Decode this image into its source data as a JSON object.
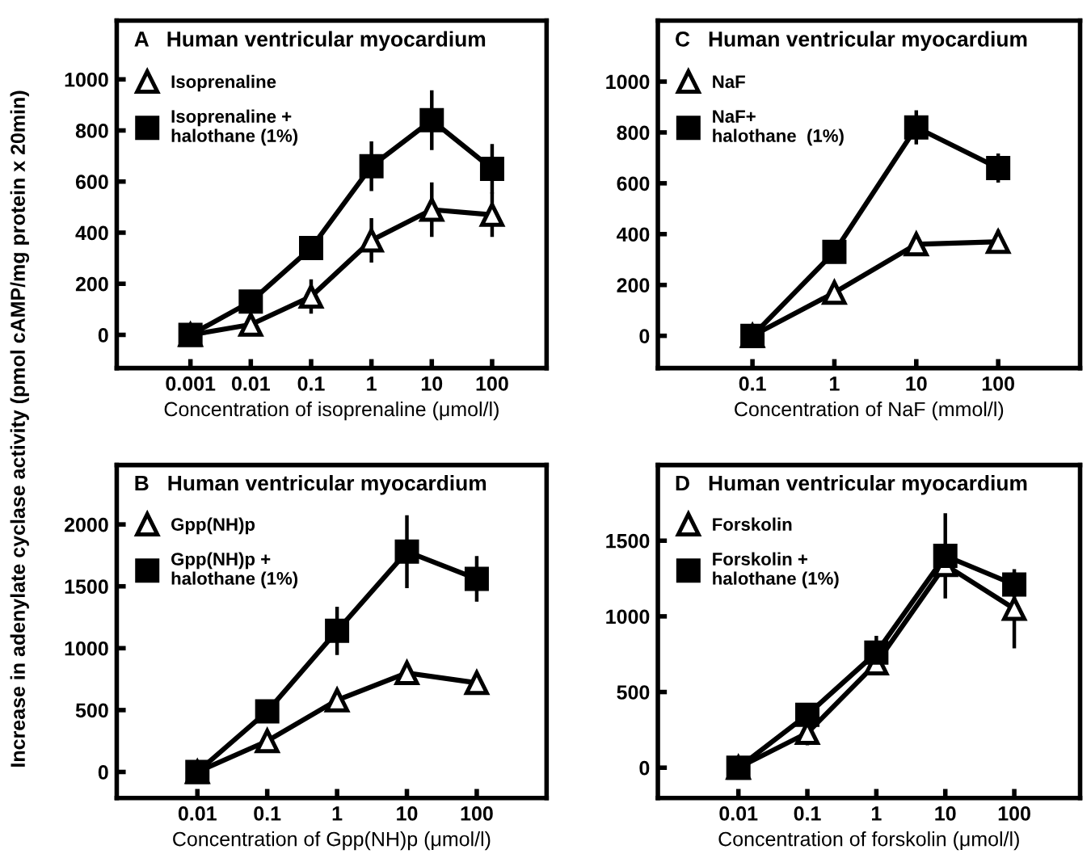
{
  "chart_data": [
    {
      "type": "line",
      "title": "A   Human ventricular myocardium",
      "ylabel": "Increase in adenylate cyclase activity (pmol cAMP/mg protein x 20min)",
      "xlabel": "Concentration of isoprenaline (μmol/l)",
      "log": "x",
      "x": [
        0.001,
        0.01,
        0.1,
        1,
        10,
        100
      ],
      "xlim": [
        6e-05,
        800
      ],
      "xticks": [
        {
          "value": 0.001,
          "label": "0.001"
        },
        {
          "value": 0.01,
          "label": "0.01"
        },
        {
          "value": 0.1,
          "label": "0.1"
        },
        {
          "value": 1,
          "label": "1"
        },
        {
          "value": 10,
          "label": "10"
        },
        {
          "value": 100,
          "label": "100"
        }
      ],
      "ylim": [
        -130,
        1230
      ],
      "yticks": [
        0,
        200,
        400,
        600,
        800,
        1000
      ],
      "grid": false,
      "legend": "top left",
      "series": [
        {
          "name": "Isoprenaline",
          "color": "#000000",
          "marker": "triangle",
          "values": [
            0,
            40,
            150,
            370,
            490,
            470
          ],
          "errors": [
            null,
            null,
            60,
            80,
            100,
            80
          ]
        },
        {
          "name": "Isoprenaline +\nhalothane (1%)",
          "color": "#000000",
          "marker": "square",
          "values": [
            0,
            130,
            340,
            660,
            840,
            650
          ],
          "errors": [
            null,
            null,
            null,
            90,
            110,
            90
          ]
        }
      ]
    },
    {
      "type": "line",
      "title": "C   Human ventricular myocardium",
      "xlabel": "Concentration of NaF (mmol/l)",
      "log": "x",
      "x": [
        0.1,
        1,
        10,
        100
      ],
      "xlim": [
        0.007,
        1000
      ],
      "xticks": [
        {
          "value": 0.1,
          "label": "0.1"
        },
        {
          "value": 1,
          "label": "1"
        },
        {
          "value": 10,
          "label": "10"
        },
        {
          "value": 100,
          "label": "100"
        }
      ],
      "ylim": [
        -127,
        1240
      ],
      "yticks": [
        0,
        200,
        400,
        600,
        800,
        1000
      ],
      "grid": false,
      "legend": "top left",
      "series": [
        {
          "name": "NaF",
          "color": "#000000",
          "marker": "triangle",
          "values": [
            0,
            170,
            360,
            370
          ],
          "errors": [
            null,
            null,
            null,
            40
          ]
        },
        {
          "name": "NaF+\nhalothane  (1%)",
          "color": "#000000",
          "marker": "square",
          "values": [
            0,
            330,
            820,
            660
          ],
          "errors": [
            null,
            null,
            60,
            50
          ]
        }
      ]
    },
    {
      "type": "line",
      "title": "B   Human ventricular myocardium",
      "xlabel": "Concentration of Gpp(NH)p (μmol/l)",
      "log": "x",
      "x": [
        0.01,
        0.1,
        1,
        10,
        100
      ],
      "xlim": [
        0.0007,
        1000
      ],
      "xticks": [
        {
          "value": 0.01,
          "label": "0.01"
        },
        {
          "value": 0.1,
          "label": "0.1"
        },
        {
          "value": 1,
          "label": "1"
        },
        {
          "value": 10,
          "label": "10"
        },
        {
          "value": 100,
          "label": "100"
        }
      ],
      "ylim": [
        -210,
        2480
      ],
      "yticks": [
        0,
        500,
        1000,
        1500,
        2000
      ],
      "grid": false,
      "legend": "top left",
      "series": [
        {
          "name": "Gpp(NH)p",
          "color": "#000000",
          "marker": "triangle",
          "values": [
            0,
            250,
            580,
            800,
            720
          ]
        },
        {
          "name": "Gpp(NH)p +\nhalothane (1%)",
          "color": "#000000",
          "marker": "square",
          "values": [
            0,
            490,
            1140,
            1780,
            1560
          ],
          "errors": [
            null,
            null,
            180,
            280,
            170
          ]
        }
      ]
    },
    {
      "type": "line",
      "title": "D   Human ventricular myocardium",
      "xlabel": "Concentration of forskolin (μmol/l)",
      "log": "x",
      "x": [
        0.01,
        0.1,
        1,
        10,
        100
      ],
      "xlim": [
        0.00068,
        900
      ],
      "xticks": [
        {
          "value": 0.01,
          "label": "0.01"
        },
        {
          "value": 0.1,
          "label": "0.1"
        },
        {
          "value": 1,
          "label": "1"
        },
        {
          "value": 10,
          "label": "10"
        },
        {
          "value": 100,
          "label": "100"
        }
      ],
      "ylim": [
        -200,
        2000
      ],
      "yticks": [
        0,
        500,
        1000,
        1500
      ],
      "grid": false,
      "legend": "top left",
      "series": [
        {
          "name": "Forskolin",
          "color": "#000000",
          "marker": "triangle",
          "values": [
            0,
            230,
            690,
            1340,
            1050
          ],
          "errors": [
            null,
            70,
            null,
            null,
            250
          ]
        },
        {
          "name": "Forskolin +\nhalothane (1%)",
          "color": "#000000",
          "marker": "square",
          "values": [
            0,
            350,
            760,
            1400,
            1210
          ],
          "errors": [
            null,
            null,
            100,
            270,
            70
          ]
        }
      ]
    }
  ]
}
